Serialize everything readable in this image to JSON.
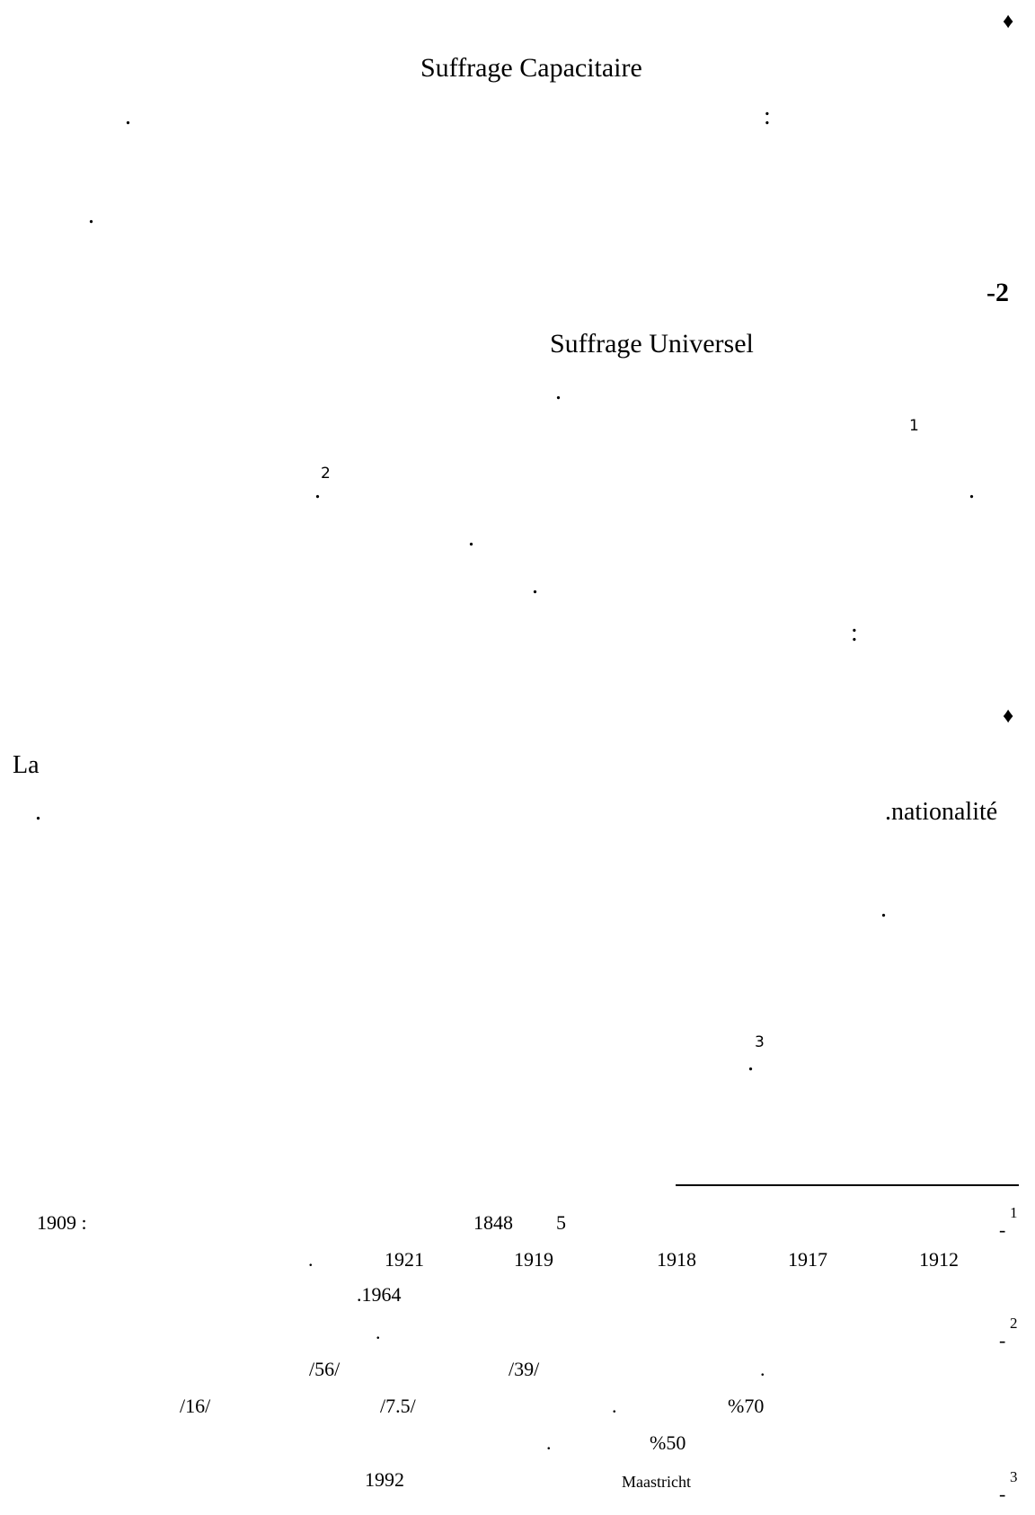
{
  "page": {
    "bullet_top": "♦",
    "heading_capacitaire": "Suffrage  Capacitaire",
    "colon_1": ":",
    "dot_1": ".",
    "dot_2": ".",
    "section_number": "-2",
    "heading_universel": "Suffrage   Universel",
    "dot_3": ".",
    "footnote_ref_1": "1",
    "dot_4": ".",
    "footnote_ref_2": "2",
    "dot_5": ".",
    "dot_6": ".",
    "dot_7": ".",
    "colon_2": ":",
    "bullet_mid": "♦",
    "text_la": "La",
    "text_nationalite": ".nationalité",
    "dot_8": ".",
    "dot_9": ".",
    "dot_10": ".",
    "footnote_ref_3": "3"
  },
  "footnotes": {
    "fn1_marker": "-",
    "fn1_sup": "1",
    "fn1_line1": {
      "year_1909": "1909 :",
      "year_1848": "1848",
      "num_5": "5"
    },
    "fn1_line2": {
      "dot": ".",
      "y1921": "1921",
      "y1919": "1919",
      "y1918": "1918",
      "y1917": "1917",
      "y1912": "1912"
    },
    "fn1_line3": ".1964",
    "fn2_marker": "-",
    "fn2_sup": "2",
    "fn2_line1_dot": ".",
    "fn2_line2": {
      "v56": "/56/",
      "v39": "/39/",
      "dot": "."
    },
    "fn2_line3": {
      "v16": "/16/",
      "v7_5": "/7.5/",
      "dot": ".",
      "pct70": "%70"
    },
    "fn2_line4": {
      "dot": ".",
      "pct50": "%50"
    },
    "fn3_marker": "-",
    "fn3_sup": "3",
    "fn3_line1": {
      "y1992": "1992",
      "maastricht": "Maastricht"
    }
  }
}
